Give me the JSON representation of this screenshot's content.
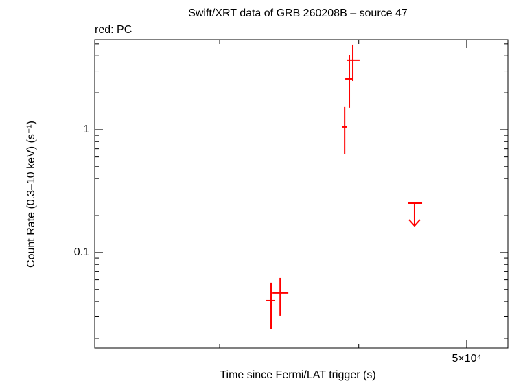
{
  "chart_data": {
    "type": "scatter",
    "title": "Swift/XRT data of GRB 260208B – source 47",
    "subtitle": "red: PC",
    "x_label": "Time since Fermi/LAT trigger (s)",
    "y_label": "Count Rate (0.3–10 keV) (s⁻¹)",
    "log_x": true,
    "log_y": true,
    "xlim": [
      23170,
      54450
    ],
    "ylim": [
      0.0167,
      5.39
    ],
    "xticks": [
      {
        "value": 50000,
        "label": "5×10⁴"
      }
    ],
    "xminor_ticks": [
      30000,
      40000
    ],
    "yticks": [
      0.1,
      1
    ],
    "yminor_ticks": [
      0.02,
      0.03,
      0.04,
      0.05,
      0.06,
      0.07,
      0.08,
      0.09,
      0.2,
      0.3,
      0.4,
      0.5,
      0.6,
      0.7,
      0.8,
      0.9,
      2,
      3,
      4,
      5
    ],
    "color": "#ff0000",
    "x": [
      33370,
      34000,
      38850,
      39230,
      39510
    ],
    "x_low": [
      33040,
      33470,
      38630,
      38900,
      39060
    ],
    "x_high": [
      33610,
      34580,
      39010,
      39560,
      40070
    ],
    "values": [
      0.0406,
      0.0468,
      1.053,
      2.59,
      3.67
    ],
    "y_low": [
      0.0237,
      0.0306,
      0.629,
      1.51,
      2.49
    ],
    "y_high": [
      0.0568,
      0.0621,
      1.53,
      4.06,
      4.93
    ],
    "upper_limits": {
      "x": [
        44890
      ],
      "x_low": [
        44320
      ],
      "x_high": [
        45600
      ],
      "values": [
        0.252
      ]
    }
  }
}
